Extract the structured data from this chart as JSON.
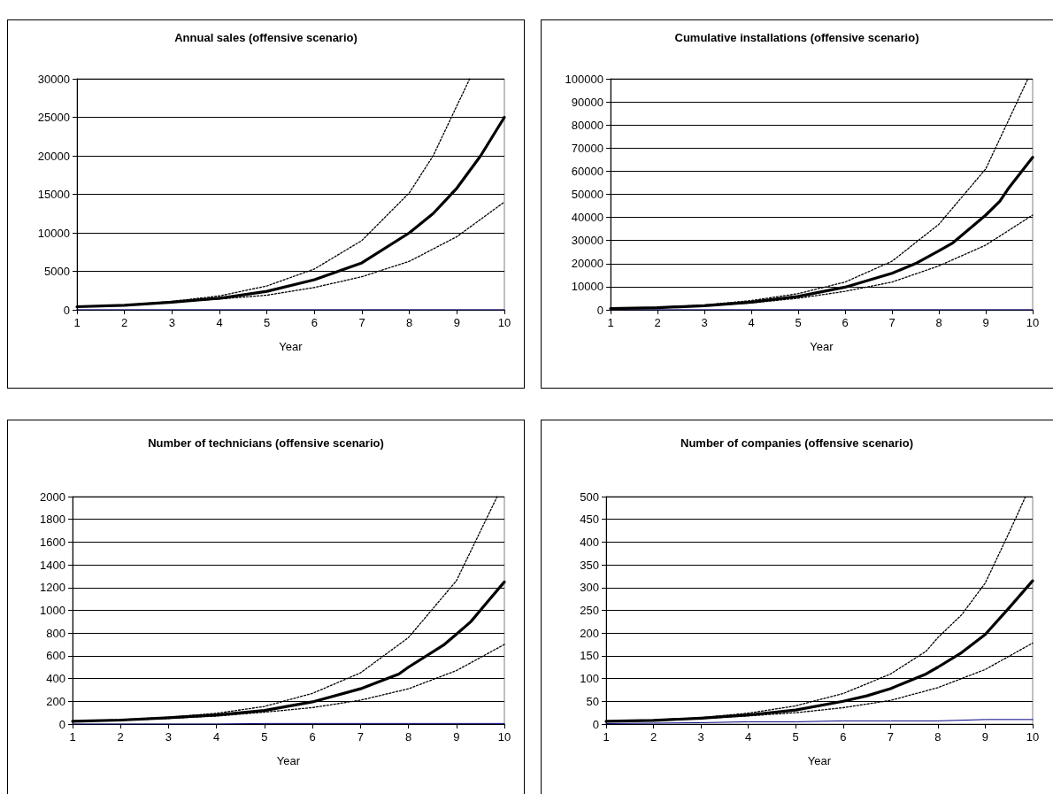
{
  "chart_data": [
    {
      "type": "line",
      "title": "Annual sales (offensive scenario)",
      "xlabel": "Year",
      "xlim": [
        1,
        10
      ],
      "xticks": [
        1,
        2,
        3,
        4,
        5,
        6,
        7,
        8,
        9,
        10
      ],
      "ylim": [
        0,
        30000
      ],
      "yticks": [
        0,
        5000,
        10000,
        15000,
        20000,
        25000,
        30000
      ],
      "grid": "y",
      "marker": "none",
      "series": [
        {
          "color": "#000000",
          "line_style": "solid",
          "x": [
            1,
            2,
            3,
            4,
            5,
            6,
            7,
            8,
            8.5,
            9,
            9.5,
            10
          ],
          "values": [
            400,
            600,
            1000,
            1500,
            2400,
            3900,
            6100,
            10000,
            12500,
            15800,
            20000,
            25000
          ]
        },
        {
          "color": "#000000",
          "line_style": "dotted",
          "x": [
            1,
            2,
            3,
            4,
            5,
            6,
            7,
            8,
            8.5,
            9,
            9.27
          ],
          "values": [
            400,
            600,
            1100,
            1800,
            3100,
            5300,
            9000,
            15200,
            20000,
            26500,
            30000
          ]
        },
        {
          "color": "#000000",
          "line_style": "dotted",
          "x": [
            1,
            2,
            3,
            4,
            5,
            6,
            7,
            8,
            9,
            10
          ],
          "values": [
            400,
            600,
            1000,
            1400,
            1900,
            2900,
            4300,
            6300,
            9500,
            14000
          ]
        },
        {
          "color": "#000080",
          "line_style": "solid",
          "x": [
            1,
            2,
            3,
            4,
            5,
            6,
            7,
            8,
            9,
            10
          ],
          "values": [
            0,
            0,
            0,
            0,
            0,
            0,
            0,
            0,
            0,
            0
          ]
        }
      ]
    },
    {
      "type": "line",
      "title": "Cumulative installations (offensive scenario)",
      "xlabel": "Year",
      "xlim": [
        1,
        10
      ],
      "xticks": [
        1,
        2,
        3,
        4,
        5,
        6,
        7,
        8,
        9,
        10
      ],
      "ylim": [
        0,
        100000
      ],
      "yticks": [
        0,
        10000,
        20000,
        30000,
        40000,
        50000,
        60000,
        70000,
        80000,
        90000,
        100000
      ],
      "grid": "y",
      "marker": "none",
      "series": [
        {
          "color": "#000000",
          "line_style": "solid",
          "x": [
            1,
            2,
            3,
            4,
            5,
            6,
            7,
            7.5,
            8,
            8.3,
            9,
            9.3,
            9.5,
            10
          ],
          "values": [
            500,
            900,
            1800,
            3300,
            5800,
            9800,
            15800,
            20000,
            25500,
            29000,
            41000,
            47000,
            53000,
            66000
          ]
        },
        {
          "color": "#000000",
          "line_style": "dotted",
          "x": [
            1,
            2,
            3,
            4,
            5,
            6,
            7,
            8,
            9,
            9.9
          ],
          "values": [
            500,
            1000,
            2100,
            4000,
            7000,
            12000,
            21000,
            37000,
            61000,
            100000
          ]
        },
        {
          "color": "#000000",
          "line_style": "dotted",
          "x": [
            1,
            2,
            3,
            4,
            5,
            6,
            7,
            8,
            9,
            10
          ],
          "values": [
            500,
            900,
            1700,
            3000,
            5000,
            8000,
            12000,
            19000,
            28000,
            41000
          ]
        },
        {
          "color": "#000080",
          "line_style": "solid",
          "x": [
            1,
            2,
            3,
            4,
            5,
            6,
            7,
            8,
            9,
            10
          ],
          "values": [
            0,
            0,
            0,
            0,
            0,
            0,
            0,
            0,
            0,
            0
          ]
        }
      ]
    },
    {
      "type": "line",
      "title": "Number of technicians (offensive scenario)",
      "xlabel": "Year",
      "xlim": [
        1,
        10
      ],
      "xticks": [
        1,
        2,
        3,
        4,
        5,
        6,
        7,
        8,
        9,
        10
      ],
      "ylim": [
        0,
        2000
      ],
      "yticks": [
        0,
        200,
        400,
        600,
        800,
        1000,
        1200,
        1400,
        1600,
        1800,
        2000
      ],
      "grid": "y",
      "marker": "none",
      "series": [
        {
          "color": "#000000",
          "line_style": "solid",
          "x": [
            1,
            2,
            3,
            4,
            5,
            6,
            7,
            7.8,
            8,
            8.75,
            9,
            9.3,
            9.6,
            10
          ],
          "values": [
            25,
            35,
            55,
            80,
            120,
            195,
            310,
            440,
            500,
            700,
            790,
            900,
            1050,
            1250
          ]
        },
        {
          "color": "#000000",
          "line_style": "dotted",
          "x": [
            1,
            2,
            3,
            4,
            5,
            6,
            7,
            8,
            9,
            9.85
          ],
          "values": [
            25,
            38,
            60,
            95,
            155,
            270,
            450,
            760,
            1260,
            2000
          ]
        },
        {
          "color": "#000000",
          "line_style": "dotted",
          "x": [
            1,
            2,
            3,
            4,
            5,
            6,
            7,
            8,
            9,
            10
          ],
          "values": [
            25,
            33,
            50,
            70,
            105,
            145,
            210,
            310,
            470,
            700
          ]
        },
        {
          "color": "#000080",
          "line_style": "solid",
          "x": [
            1,
            2,
            3,
            4,
            5,
            6,
            7,
            8,
            9,
            10
          ],
          "values": [
            0,
            0,
            0,
            0,
            5,
            5,
            5,
            5,
            5,
            5
          ]
        }
      ]
    },
    {
      "type": "line",
      "title": "Number of companies (offensive scenario)",
      "xlabel": "Year",
      "xlim": [
        1,
        10
      ],
      "xticks": [
        1,
        2,
        3,
        4,
        5,
        6,
        7,
        8,
        9,
        10
      ],
      "ylim": [
        0,
        500
      ],
      "yticks": [
        0,
        50,
        100,
        150,
        200,
        250,
        300,
        350,
        400,
        450,
        500
      ],
      "grid": "y",
      "marker": "none",
      "series": [
        {
          "color": "#000000",
          "line_style": "solid",
          "x": [
            1,
            2,
            3,
            4,
            5,
            6,
            6.5,
            7,
            7.75,
            8,
            8.5,
            9,
            9.5,
            10
          ],
          "values": [
            6,
            8,
            13,
            20,
            31,
            50,
            62,
            78,
            110,
            125,
            157,
            197,
            255,
            315
          ]
        },
        {
          "color": "#000000",
          "line_style": "dotted",
          "x": [
            1,
            2,
            3,
            4,
            5,
            6,
            7,
            7.75,
            8,
            8.5,
            9,
            9.5,
            9.85
          ],
          "values": [
            6,
            9,
            14,
            24,
            40,
            67,
            110,
            160,
            190,
            240,
            310,
            420,
            500
          ]
        },
        {
          "color": "#000000",
          "line_style": "dotted",
          "x": [
            1,
            2,
            3,
            4,
            5,
            6,
            7,
            8,
            9,
            10
          ],
          "values": [
            6,
            8,
            12,
            18,
            25,
            36,
            52,
            80,
            120,
            178
          ]
        },
        {
          "color": "#000080",
          "line_style": "solid",
          "x": [
            1,
            2,
            3,
            4,
            5,
            6,
            7,
            8,
            9,
            10
          ],
          "values": [
            1,
            2,
            3,
            5,
            5,
            7,
            7,
            7,
            10,
            10
          ]
        }
      ]
    }
  ]
}
